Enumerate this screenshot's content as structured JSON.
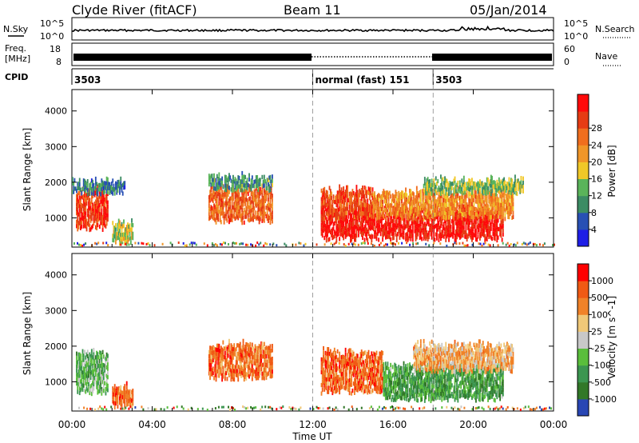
{
  "header": {
    "station": "Clyde River (fitACF)",
    "beam": "Beam 11",
    "date": "05/Jan/2014"
  },
  "left_labels": {
    "nsky": "N.Sky",
    "freq": "Freq.",
    "freq_unit": "[MHz]",
    "cpid": "CPID"
  },
  "right_labels": {
    "nsearch": "N.Search",
    "nave": "Nave"
  },
  "noise_panel": {
    "ticks_left": [
      "10^5",
      "10^0"
    ],
    "ticks_right": [
      "10^5",
      "10^0"
    ]
  },
  "freq_panel": {
    "ticks_left": [
      "18",
      "8"
    ],
    "ticks_right": [
      "60",
      "0"
    ]
  },
  "cpid_panel": {
    "segments": [
      {
        "start_hour": 0,
        "label": "3503"
      },
      {
        "start_hour": 12,
        "label": "normal (fast) 151"
      },
      {
        "start_hour": 18,
        "label": "3503"
      }
    ]
  },
  "x_axis": {
    "label": "Time UT",
    "ticks": [
      "00:00",
      "04:00",
      "08:00",
      "12:00",
      "16:00",
      "20:00",
      "00:00"
    ],
    "range_hours": [
      0,
      24
    ]
  },
  "y_axis": {
    "label": "Slant Range [km]",
    "ticks": [
      "1000",
      "2000",
      "3000",
      "4000"
    ],
    "range_km": [
      180,
      4600
    ]
  },
  "chart_data": [
    {
      "type": "heatmap",
      "name": "power",
      "colorbar_label": "Power [dB]",
      "colorbar_ticks": [
        "4",
        "8",
        "12",
        "16",
        "20",
        "24",
        "28"
      ],
      "colorbar_colors": [
        "#1e1ee6",
        "#2850b4",
        "#3c8c64",
        "#5ab45a",
        "#f0c828",
        "#f09628",
        "#f06e1e",
        "#e63c14",
        "#ff0a0a"
      ],
      "regions": [
        {
          "t": [
            0.2,
            1.8
          ],
          "r": [
            700,
            1750
          ],
          "level": 0.85
        },
        {
          "t": [
            0.0,
            2.6
          ],
          "r": [
            1700,
            2000
          ],
          "level": 0.25
        },
        {
          "t": [
            2.0,
            3.0
          ],
          "r": [
            300,
            800
          ],
          "level": 0.45
        },
        {
          "t": [
            6.8,
            10.0
          ],
          "r": [
            900,
            1800
          ],
          "level": 0.75
        },
        {
          "t": [
            6.8,
            10.0
          ],
          "r": [
            1800,
            2100
          ],
          "level": 0.3
        },
        {
          "t": [
            12.4,
            21.5
          ],
          "r": [
            400,
            1200
          ],
          "level": 0.95
        },
        {
          "t": [
            12.4,
            15.0
          ],
          "r": [
            1000,
            1750
          ],
          "level": 0.8
        },
        {
          "t": [
            15.0,
            22.0
          ],
          "r": [
            1000,
            1700
          ],
          "level": 0.65
        },
        {
          "t": [
            17.5,
            22.5
          ],
          "r": [
            1700,
            2000
          ],
          "level": 0.4
        }
      ]
    },
    {
      "type": "heatmap",
      "name": "velocity",
      "colorbar_label": "Velocity [m s^-1]",
      "colorbar_ticks": [
        "1000",
        "500",
        "100",
        "25",
        "-25",
        "-100",
        "-500",
        "-1000"
      ],
      "colorbar_colors": [
        "#2846b4",
        "#327828",
        "#3c9650",
        "#5abe3c",
        "#c8c8c8",
        "#f0c878",
        "#f08228",
        "#f05a14",
        "#ff0000"
      ],
      "regions": [
        {
          "t": [
            0.2,
            1.8
          ],
          "r": [
            700,
            1750
          ],
          "level": 0.35
        },
        {
          "t": [
            2.0,
            3.0
          ],
          "r": [
            300,
            800
          ],
          "level": 0.8
        },
        {
          "t": [
            6.8,
            10.0
          ],
          "r": [
            1100,
            2000
          ],
          "level": 0.78
        },
        {
          "t": [
            12.4,
            15.5
          ],
          "r": [
            700,
            1800
          ],
          "level": 0.8
        },
        {
          "t": [
            15.5,
            21.5
          ],
          "r": [
            500,
            1400
          ],
          "level": 0.3
        },
        {
          "t": [
            17.0,
            22.0
          ],
          "r": [
            1300,
            2000
          ],
          "level": 0.65
        }
      ]
    }
  ]
}
